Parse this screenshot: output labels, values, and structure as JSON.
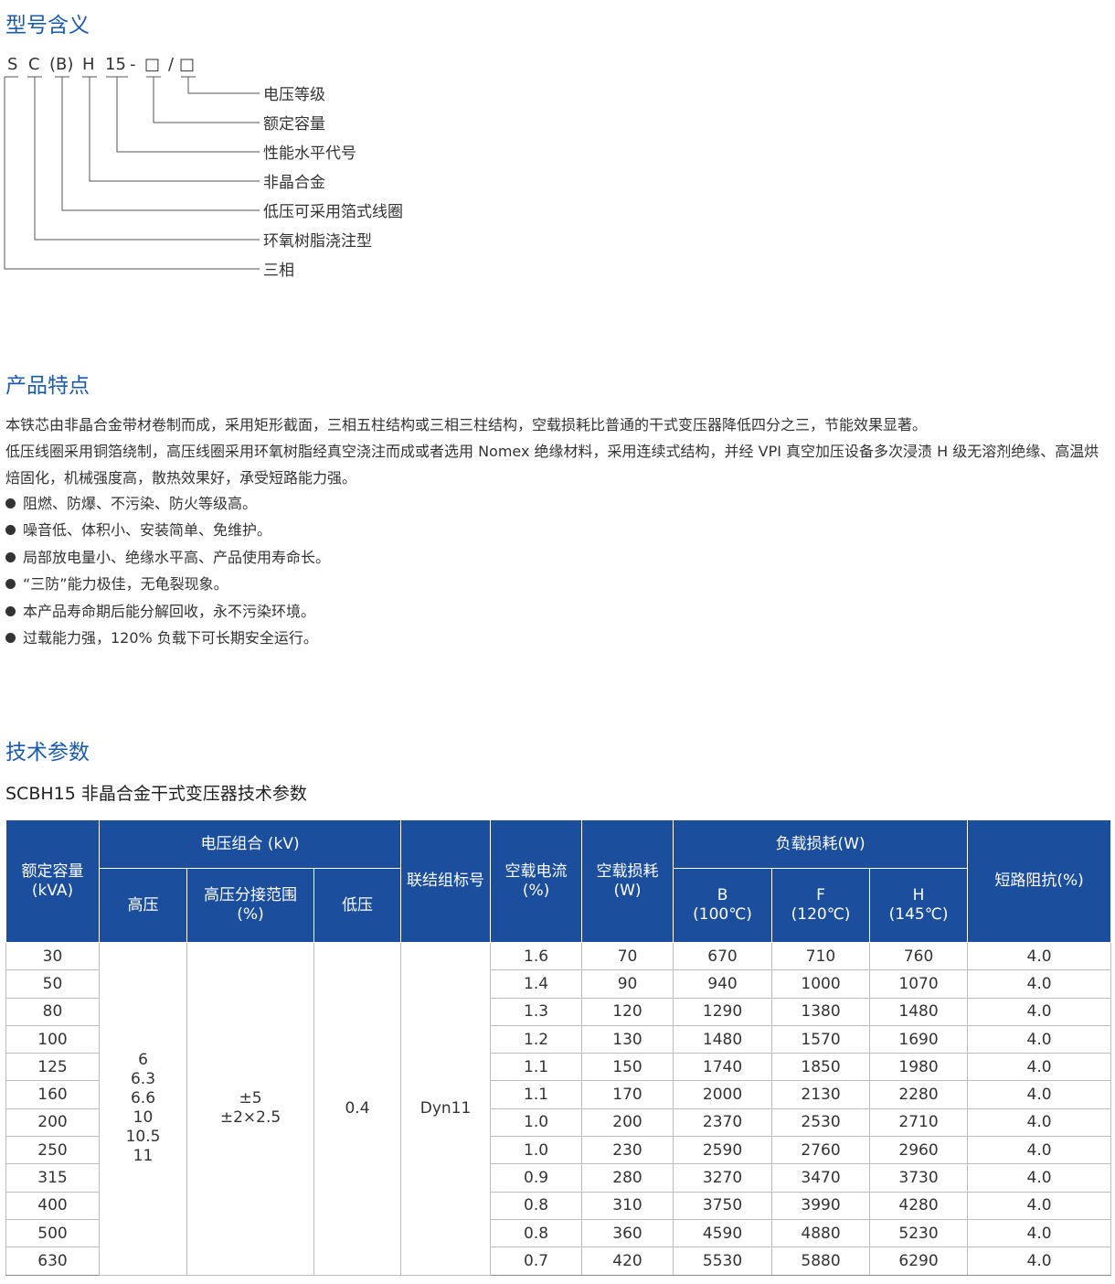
{
  "sections": {
    "model_meaning": "型号含义",
    "features": "产品特点",
    "tech_params": "技术参数"
  },
  "model_code": {
    "parts": [
      "S",
      "C",
      "(B)",
      "H",
      "15",
      "-",
      "□",
      "/",
      "□"
    ],
    "legend": [
      "电压等级",
      "额定容量",
      "性能水平代号",
      "非晶合金",
      "低压可采用箔式线圈",
      "环氧树脂浇注型",
      "三相"
    ]
  },
  "features": {
    "paragraphs": [
      "本铁芯由非晶合金带材卷制而成，采用矩形截面，三相五柱结构或三相三柱结构，空载损耗比普通的干式变压器降低四分之三，节能效果显著。",
      "低压线圈采用铜箔绕制，高压线圈采用环氧树脂经真空浇注而成或者选用 Nomex 绝缘材料，采用连续式结构，并经 VPI 真空加压设备多次浸渍 H 级无溶剂绝缘、高温烘焙固化，机械强度高，散热效果好，承受短路能力强。"
    ],
    "bullets": [
      "阻燃、防爆、不污染、防火等级高。",
      "噪音低、体积小、安装简单、免维护。",
      "局部放电量小、绝缘水平高、产品使用寿命长。",
      "“三防”能力极佳，无龟裂现象。",
      "本产品寿命期后能分解回收，永不污染环境。",
      "过载能力强，120% 负载下可长期安全运行。"
    ]
  },
  "table": {
    "title": "SCBH15 非晶合金干式变压器技术参数",
    "headers": {
      "capacity": [
        "额定容量",
        "(kVA)"
      ],
      "voltage_group": "电压组合 (kV)",
      "hv": "高压",
      "tap": [
        "高压分接范围",
        "(%)"
      ],
      "lv": "低压",
      "connection": "联结组标号",
      "no_load_current": [
        "空载电流",
        "(%)"
      ],
      "no_load_loss": [
        "空载损耗",
        "(W)"
      ],
      "load_loss": "负载损耗(W)",
      "b": [
        "B",
        "(100℃)"
      ],
      "f": [
        "F",
        "(120℃)"
      ],
      "h": [
        "H",
        "(145℃)"
      ],
      "impedance": "短路阻抗(%)"
    },
    "merged": {
      "hv_values": [
        "6",
        "6.3",
        "6.6",
        "10",
        "10.5",
        "11"
      ],
      "tap_values": [
        "±5",
        "±2×2.5"
      ],
      "lv": "0.4",
      "connection": "Dyn11"
    },
    "rows": [
      {
        "cap": "30",
        "i0": "1.6",
        "p0": "70",
        "b": "670",
        "f": "710",
        "h": "760",
        "z": "4.0"
      },
      {
        "cap": "50",
        "i0": "1.4",
        "p0": "90",
        "b": "940",
        "f": "1000",
        "h": "1070",
        "z": "4.0"
      },
      {
        "cap": "80",
        "i0": "1.3",
        "p0": "120",
        "b": "1290",
        "f": "1380",
        "h": "1480",
        "z": "4.0"
      },
      {
        "cap": "100",
        "i0": "1.2",
        "p0": "130",
        "b": "1480",
        "f": "1570",
        "h": "1690",
        "z": "4.0"
      },
      {
        "cap": "125",
        "i0": "1.1",
        "p0": "150",
        "b": "1740",
        "f": "1850",
        "h": "1980",
        "z": "4.0"
      },
      {
        "cap": "160",
        "i0": "1.1",
        "p0": "170",
        "b": "2000",
        "f": "2130",
        "h": "2280",
        "z": "4.0"
      },
      {
        "cap": "200",
        "i0": "1.0",
        "p0": "200",
        "b": "2370",
        "f": "2530",
        "h": "2710",
        "z": "4.0"
      },
      {
        "cap": "250",
        "i0": "1.0",
        "p0": "230",
        "b": "2590",
        "f": "2760",
        "h": "2960",
        "z": "4.0"
      },
      {
        "cap": "315",
        "i0": "0.9",
        "p0": "280",
        "b": "3270",
        "f": "3470",
        "h": "3730",
        "z": "4.0"
      },
      {
        "cap": "400",
        "i0": "0.8",
        "p0": "310",
        "b": "3750",
        "f": "3990",
        "h": "4280",
        "z": "4.0"
      },
      {
        "cap": "500",
        "i0": "0.8",
        "p0": "360",
        "b": "4590",
        "f": "4880",
        "h": "5230",
        "z": "4.0"
      },
      {
        "cap": "630",
        "i0": "0.7",
        "p0": "420",
        "b": "5530",
        "f": "5880",
        "h": "6290",
        "z": "4.0"
      }
    ]
  },
  "colors": {
    "heading": "#1b5bab",
    "table_header_bg": "#1b4e9c",
    "table_header_text": "#ffffff"
  }
}
